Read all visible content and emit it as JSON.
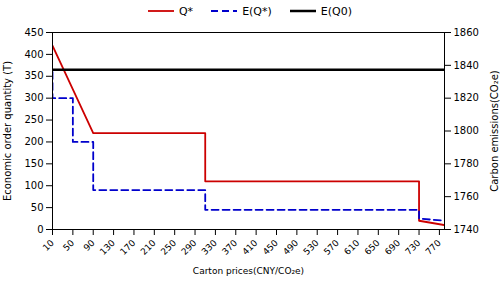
{
  "chart_data": {
    "type": "line",
    "xlabel": "Carton prices(CNY/CO₂e)",
    "ylabel": "Economic order quantity (T)",
    "y2label": "Carbon emissions(CO₂e)",
    "xlim": [
      10,
      780
    ],
    "xticks": [
      10,
      50,
      90,
      130,
      170,
      210,
      250,
      290,
      330,
      370,
      410,
      450,
      490,
      530,
      570,
      610,
      650,
      690,
      730,
      770
    ],
    "ylim": [
      0,
      450
    ],
    "yticks": [
      0,
      50,
      100,
      150,
      200,
      250,
      300,
      350,
      400,
      450
    ],
    "y2lim": [
      1740,
      1860
    ],
    "y2ticks": [
      1740,
      1760,
      1780,
      1800,
      1820,
      1840,
      1860
    ],
    "grid": false,
    "legend": "top",
    "series": [
      {
        "name": "Q*",
        "color": "#cc0000",
        "line_style": "solid",
        "x": [
          10,
          50,
          50,
          90,
          90,
          310,
          310,
          730,
          730,
          780
        ],
        "values": [
          420,
          320,
          320,
          220,
          220,
          220,
          110,
          110,
          20,
          10
        ]
      },
      {
        "name": "E(Q*)",
        "color": "#0000cc",
        "line_style": "dashed",
        "x": [
          10,
          10,
          50,
          50,
          90,
          90,
          310,
          310,
          730,
          730,
          780
        ],
        "values": [
          360,
          300,
          300,
          200,
          200,
          90,
          90,
          45,
          45,
          25,
          20
        ]
      },
      {
        "name": "E(Q0)",
        "color": "#000000",
        "line_style": "solid",
        "type": "hline",
        "values": [
          365
        ]
      }
    ]
  }
}
